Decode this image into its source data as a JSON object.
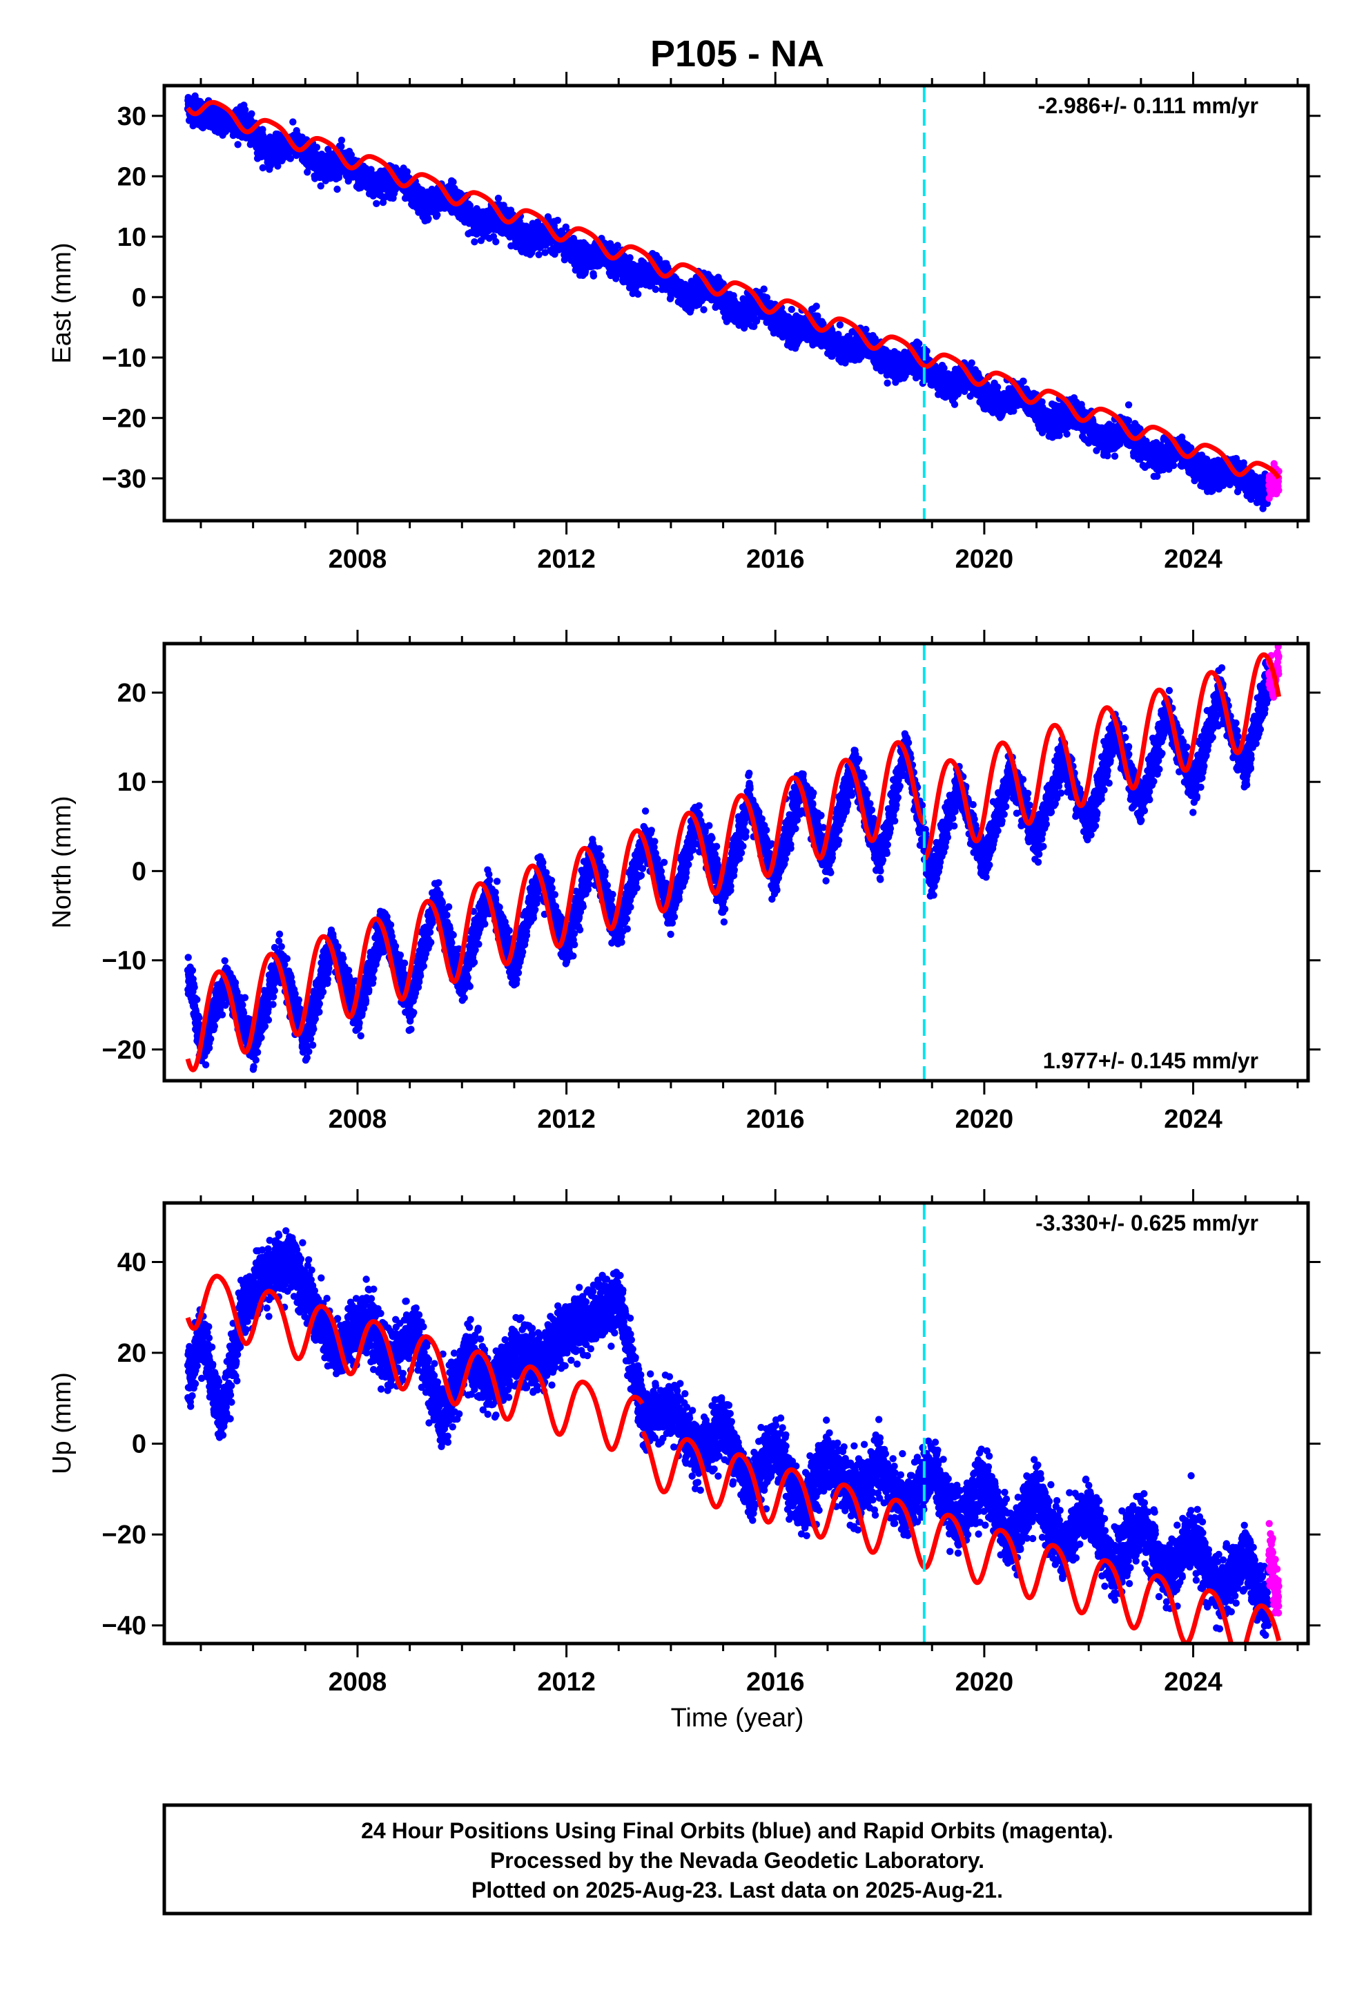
{
  "title": "P105 - NA",
  "xlabel": "Time (year)",
  "caption": [
    "24 Hour Positions Using Final Orbits (blue) and Rapid Orbits (magenta).",
    "Processed by the Nevada Geodetic Laboratory.",
    "Plotted on 2025-Aug-23. Last data on 2025-Aug-21."
  ],
  "colors": {
    "final": "#0000ff",
    "rapid": "#ff00ff",
    "model": "#ff0000",
    "equipment_change": "#00e5ee"
  },
  "chart_data": [
    {
      "type": "scatter",
      "component": "East",
      "ylabel": "East (mm)",
      "rate_label": "-2.986+/- 0.111 mm/yr",
      "rate_position": "top-right",
      "xlim": [
        2004.3,
        2026.2
      ],
      "ylim": [
        -37,
        35
      ],
      "xticks": [
        2008,
        2012,
        2016,
        2020,
        2024
      ],
      "yticks": [
        -30,
        -20,
        -10,
        0,
        10,
        20,
        30
      ],
      "grid": false,
      "equipment_change_year": 2018.85,
      "data_start_year": 2004.75,
      "final_end_year": 2025.45,
      "rapid_end_year": 2025.64,
      "series": [
        {
          "name": "Final Orbits",
          "color": "blue",
          "points": [
            [
              2004.8,
              31.5
            ],
            [
              2005.2,
              29.5
            ],
            [
              2005.8,
              29.0
            ],
            [
              2006.3,
              24.0
            ],
            [
              2006.8,
              25.5
            ],
            [
              2007.3,
              21.5
            ],
            [
              2007.7,
              22.5
            ],
            [
              2008.3,
              18.5
            ],
            [
              2008.8,
              19.5
            ],
            [
              2009.3,
              15.0
            ],
            [
              2009.8,
              17.0
            ],
            [
              2010.3,
              12.0
            ],
            [
              2010.7,
              13.5
            ],
            [
              2011.3,
              9.0
            ],
            [
              2011.7,
              10.5
            ],
            [
              2012.3,
              6.0
            ],
            [
              2012.7,
              7.5
            ],
            [
              2013.3,
              3.0
            ],
            [
              2013.7,
              5.0
            ],
            [
              2014.3,
              0.0
            ],
            [
              2014.7,
              2.0
            ],
            [
              2015.3,
              -3.0
            ],
            [
              2015.7,
              -1.0
            ],
            [
              2016.3,
              -6.0
            ],
            [
              2016.7,
              -4.5
            ],
            [
              2017.3,
              -9.0
            ],
            [
              2017.7,
              -7.5
            ],
            [
              2018.3,
              -12.0
            ],
            [
              2018.7,
              -10.0
            ],
            [
              2019.3,
              -15.0
            ],
            [
              2019.7,
              -13.0
            ],
            [
              2020.3,
              -18.0
            ],
            [
              2020.7,
              -16.0
            ],
            [
              2021.3,
              -21.0
            ],
            [
              2021.7,
              -19.0
            ],
            [
              2022.3,
              -24.0
            ],
            [
              2022.7,
              -22.0
            ],
            [
              2023.3,
              -27.0
            ],
            [
              2023.7,
              -25.0
            ],
            [
              2024.3,
              -30.0
            ],
            [
              2024.7,
              -28.5
            ],
            [
              2025.3,
              -32.0
            ]
          ]
        },
        {
          "name": "Rapid Orbits",
          "color": "magenta",
          "points": [
            [
              2025.5,
              -31.0
            ],
            [
              2025.55,
              -29.5
            ],
            [
              2025.6,
              -30.5
            ]
          ]
        },
        {
          "name": "Model fit",
          "type": "line",
          "color": "red",
          "rate_mm_per_yr": -2.986,
          "intercept_mm": 32.5,
          "annual_amp_mm": 1.5,
          "semiannual_amp_mm": 0.3
        }
      ]
    },
    {
      "type": "scatter",
      "component": "North",
      "ylabel": "North (mm)",
      "rate_label": "1.977+/- 0.145 mm/yr",
      "rate_position": "bottom-right",
      "xlim": [
        2004.3,
        2026.2
      ],
      "ylim": [
        -23.5,
        25.5
      ],
      "xticks": [
        2008,
        2012,
        2016,
        2020,
        2024
      ],
      "yticks": [
        -20,
        -10,
        0,
        10,
        20
      ],
      "grid": false,
      "equipment_change_year": 2018.85,
      "data_start_year": 2004.75,
      "final_end_year": 2025.45,
      "rapid_end_year": 2025.64,
      "series": [
        {
          "name": "Final Orbits",
          "color": "blue",
          "points": [
            [
              2004.8,
              -12.0
            ],
            [
              2005.0,
              -20.0
            ],
            [
              2005.5,
              -12.0
            ],
            [
              2006.0,
              -20.0
            ],
            [
              2006.5,
              -10.0
            ],
            [
              2007.0,
              -19.0
            ],
            [
              2007.5,
              -8.0
            ],
            [
              2008.0,
              -16.0
            ],
            [
              2008.5,
              -6.0
            ],
            [
              2009.0,
              -15.0
            ],
            [
              2009.5,
              -3.0
            ],
            [
              2010.0,
              -13.0
            ],
            [
              2010.5,
              -2.0
            ],
            [
              2011.0,
              -11.0
            ],
            [
              2011.5,
              0.0
            ],
            [
              2012.0,
              -9.0
            ],
            [
              2012.5,
              2.0
            ],
            [
              2013.0,
              -7.0
            ],
            [
              2013.5,
              4.0
            ],
            [
              2014.0,
              -5.0
            ],
            [
              2014.5,
              6.0
            ],
            [
              2015.0,
              -3.0
            ],
            [
              2015.5,
              8.0
            ],
            [
              2016.0,
              -1.0
            ],
            [
              2016.5,
              10.0
            ],
            [
              2017.0,
              1.0
            ],
            [
              2017.5,
              12.0
            ],
            [
              2018.0,
              1.0
            ],
            [
              2018.5,
              14.0
            ],
            [
              2019.0,
              -1.0
            ],
            [
              2019.5,
              10.0
            ],
            [
              2020.0,
              1.0
            ],
            [
              2020.5,
              11.0
            ],
            [
              2021.0,
              3.0
            ],
            [
              2021.5,
              13.0
            ],
            [
              2022.0,
              5.0
            ],
            [
              2022.5,
              16.0
            ],
            [
              2023.0,
              7.0
            ],
            [
              2023.5,
              18.0
            ],
            [
              2024.0,
              9.0
            ],
            [
              2024.5,
              20.0
            ],
            [
              2025.0,
              11.0
            ],
            [
              2025.4,
              21.0
            ]
          ]
        },
        {
          "name": "Rapid Orbits",
          "color": "magenta",
          "points": [
            [
              2025.5,
              22.0
            ],
            [
              2025.55,
              20.5
            ],
            [
              2025.6,
              23.0
            ]
          ]
        },
        {
          "name": "Model fit",
          "type": "line",
          "color": "red",
          "rate_mm_per_yr": 1.977,
          "intercept_mm": -17.0,
          "annual_amp_mm": 5.0,
          "semiannual_amp_mm": 0.5,
          "step_year": 2018.85,
          "step_mm": -4.0
        }
      ]
    },
    {
      "type": "scatter",
      "component": "Up",
      "ylabel": "Up (mm)",
      "rate_label": "-3.330+/- 0.625 mm/yr",
      "rate_position": "top-right",
      "xlim": [
        2004.3,
        2026.2
      ],
      "ylim": [
        -44,
        53
      ],
      "xticks": [
        2008,
        2012,
        2016,
        2020,
        2024
      ],
      "yticks": [
        -40,
        -20,
        0,
        20,
        40
      ],
      "grid": false,
      "equipment_change_year": 2018.85,
      "data_start_year": 2004.75,
      "final_end_year": 2025.45,
      "rapid_end_year": 2025.64,
      "series": [
        {
          "name": "Final Orbits",
          "color": "blue",
          "points": [
            [
              2004.8,
              15.0
            ],
            [
              2005.0,
              25.0
            ],
            [
              2005.4,
              5.0
            ],
            [
              2005.8,
              30.0
            ],
            [
              2006.3,
              38.0
            ],
            [
              2006.8,
              40.0
            ],
            [
              2007.2,
              28.0
            ],
            [
              2007.6,
              20.0
            ],
            [
              2008.1,
              28.0
            ],
            [
              2008.6,
              18.0
            ],
            [
              2009.1,
              25.0
            ],
            [
              2009.6,
              5.0
            ],
            [
              2010.1,
              20.0
            ],
            [
              2010.6,
              12.0
            ],
            [
              2011.0,
              20.0
            ],
            [
              2011.5,
              18.0
            ],
            [
              2012.0,
              25.0
            ],
            [
              2012.5,
              28.0
            ],
            [
              2013.0,
              32.0
            ],
            [
              2013.5,
              5.0
            ],
            [
              2014.0,
              8.0
            ],
            [
              2014.5,
              -3.0
            ],
            [
              2015.0,
              5.0
            ],
            [
              2015.5,
              -10.0
            ],
            [
              2016.0,
              0.0
            ],
            [
              2016.5,
              -15.0
            ],
            [
              2017.0,
              -3.0
            ],
            [
              2017.5,
              -12.0
            ],
            [
              2018.0,
              -5.0
            ],
            [
              2018.5,
              -15.0
            ],
            [
              2019.0,
              -5.0
            ],
            [
              2019.5,
              -18.0
            ],
            [
              2020.0,
              -8.0
            ],
            [
              2020.5,
              -22.0
            ],
            [
              2021.0,
              -10.0
            ],
            [
              2021.5,
              -24.0
            ],
            [
              2022.0,
              -14.0
            ],
            [
              2022.5,
              -28.0
            ],
            [
              2023.0,
              -17.0
            ],
            [
              2023.5,
              -30.0
            ],
            [
              2024.0,
              -20.0
            ],
            [
              2024.5,
              -33.0
            ],
            [
              2025.0,
              -25.0
            ],
            [
              2025.4,
              -36.0
            ]
          ]
        },
        {
          "name": "Rapid Orbits",
          "color": "magenta",
          "points": [
            [
              2025.5,
              -25.0
            ],
            [
              2025.55,
              -30.0
            ],
            [
              2025.6,
              -34.0
            ]
          ]
        },
        {
          "name": "Model fit",
          "type": "line",
          "color": "red",
          "rate_mm_per_yr": -3.33,
          "intercept_mm": 33.0,
          "annual_amp_mm": 6.5,
          "semiannual_amp_mm": 0.8,
          "step_year": 2013.45,
          "step_mm": -6.0
        }
      ]
    }
  ]
}
